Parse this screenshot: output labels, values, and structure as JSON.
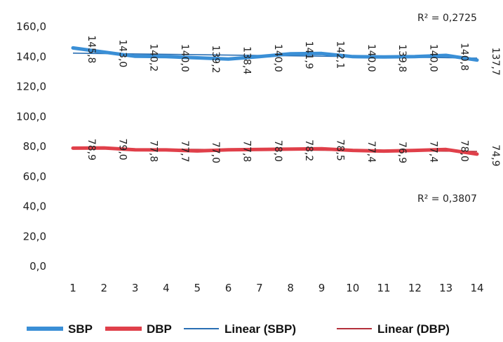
{
  "chart_data": {
    "type": "line",
    "x": [
      "1",
      "2",
      "3",
      "4",
      "5",
      "6",
      "7",
      "8",
      "9",
      "10",
      "11",
      "12",
      "13",
      "14"
    ],
    "ylim": [
      0,
      160
    ],
    "yticks": [
      "0,0",
      "20,0",
      "40,0",
      "60,0",
      "80,0",
      "100,0",
      "120,0",
      "140,0",
      "160,0"
    ],
    "legend_position": "bottom",
    "grid": false,
    "series": [
      {
        "name": "SBP",
        "color": "#3a8fd6",
        "values": [
          145.8,
          143.0,
          140.2,
          140.0,
          139.2,
          138.4,
          140.0,
          141.9,
          142.1,
          140.0,
          139.8,
          140.0,
          140.8,
          137.7
        ],
        "labels": [
          "145,8",
          "143,0",
          "140,2",
          "140,0",
          "139,2",
          "138,4",
          "140,0",
          "141,9",
          "142,1",
          "140,0",
          "139,8",
          "140,0",
          "140,8",
          "137,7"
        ]
      },
      {
        "name": "DBP",
        "color": "#e0404a",
        "values": [
          78.9,
          79.0,
          77.8,
          77.7,
          77.0,
          77.8,
          78.0,
          78.2,
          78.5,
          77.4,
          76.9,
          77.4,
          78.0,
          74.9
        ],
        "labels": [
          "78,9",
          "79,0",
          "77,8",
          "77,7",
          "77,0",
          "77,8",
          "78,0",
          "78,2",
          "78,5",
          "77,4",
          "76,9",
          "77,4",
          "78,0",
          "74,9"
        ]
      }
    ],
    "trendlines": [
      {
        "name": "Linear (SBP)",
        "color": "#2a6fb3",
        "of": "SBP",
        "r_squared": "R² = 0,2725"
      },
      {
        "name": "Linear (DBP)",
        "color": "#b3303a",
        "of": "DBP",
        "r_squared": "R² = 0,3807"
      }
    ]
  }
}
